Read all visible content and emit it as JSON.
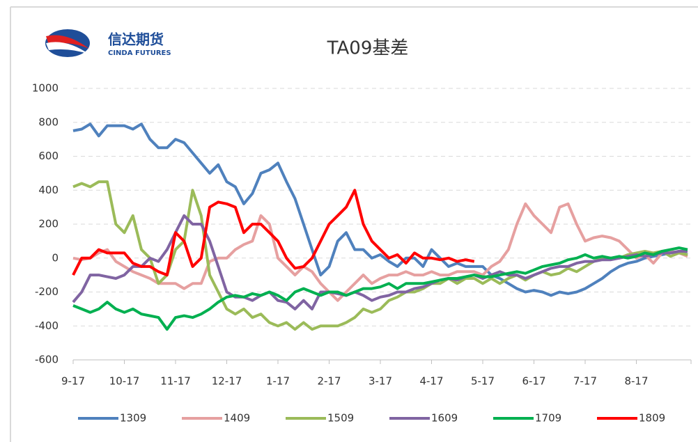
{
  "logo": {
    "name": "信达期货",
    "name_en": "CINDA FUTURES"
  },
  "chart_data": {
    "type": "line",
    "title": "TA09基差",
    "categories": [
      "9-17",
      null,
      null,
      null,
      null,
      null,
      "10-17",
      null,
      null,
      null,
      null,
      null,
      "11-17",
      null,
      null,
      null,
      null,
      null,
      "12-17",
      null,
      null,
      null,
      null,
      null,
      "1-17",
      null,
      null,
      null,
      null,
      null,
      "2-17",
      null,
      null,
      null,
      null,
      null,
      "3-17",
      null,
      null,
      null,
      null,
      null,
      "4-17",
      null,
      null,
      null,
      null,
      null,
      "5-17",
      null,
      null,
      null,
      null,
      null,
      "6-17",
      null,
      null,
      null,
      null,
      null,
      "7-17",
      null,
      null,
      null,
      null,
      null,
      "8-17",
      null,
      null,
      null,
      null,
      null,
      null
    ],
    "ylim": [
      -600,
      1000
    ],
    "yticks": [
      -600,
      -400,
      -200,
      0,
      200,
      400,
      600,
      800,
      1000
    ],
    "grid": true,
    "legend": "bottom",
    "series": [
      {
        "name": "1309",
        "color": "#4f81bd",
        "values": [
          750,
          760,
          790,
          720,
          780,
          780,
          780,
          760,
          790,
          700,
          650,
          650,
          700,
          680,
          620,
          560,
          500,
          550,
          450,
          420,
          320,
          380,
          500,
          520,
          560,
          450,
          350,
          200,
          50,
          -100,
          -50,
          100,
          150,
          50,
          50,
          0,
          20,
          -20,
          -50,
          0,
          0,
          -50,
          50,
          0,
          -50,
          -30,
          -50,
          -50,
          -50,
          -100,
          -120,
          -150,
          -180,
          -200,
          -190,
          -200,
          -220,
          -200,
          -210,
          -200,
          -180,
          -150,
          -120,
          -80,
          -50,
          -30,
          -20,
          0,
          10,
          20,
          30,
          40,
          20
        ]
      },
      {
        "name": "1409",
        "color": "#e6a0a0",
        "values": [
          0,
          -10,
          0,
          30,
          50,
          -20,
          -50,
          -80,
          -100,
          -120,
          -150,
          -150,
          -150,
          -180,
          -150,
          -150,
          -20,
          0,
          0,
          50,
          80,
          100,
          250,
          200,
          0,
          -50,
          -100,
          -50,
          -80,
          -150,
          -200,
          -250,
          -200,
          -150,
          -100,
          -150,
          -120,
          -100,
          -100,
          -80,
          -100,
          -100,
          -80,
          -100,
          -100,
          -80,
          -80,
          -80,
          -100,
          -50,
          -20,
          50,
          200,
          320,
          250,
          200,
          150,
          300,
          320,
          200,
          100,
          120,
          130,
          120,
          100,
          50,
          0,
          20,
          -30,
          30,
          40,
          30,
          10
        ]
      },
      {
        "name": "1509",
        "color": "#9bbb59",
        "values": [
          420,
          440,
          420,
          450,
          450,
          200,
          150,
          250,
          50,
          0,
          -150,
          -100,
          50,
          100,
          400,
          250,
          -100,
          -200,
          -300,
          -330,
          -300,
          -350,
          -330,
          -380,
          -400,
          -380,
          -420,
          -380,
          -420,
          -400,
          -400,
          -400,
          -380,
          -350,
          -300,
          -320,
          -300,
          -250,
          -230,
          -200,
          -200,
          -180,
          -150,
          -150,
          -120,
          -150,
          -120,
          -120,
          -150,
          -120,
          -150,
          -120,
          -100,
          -130,
          -100,
          -80,
          -100,
          -90,
          -60,
          -80,
          -50,
          -20,
          0,
          0,
          0,
          20,
          30,
          40,
          30,
          40,
          10,
          30,
          20
        ]
      },
      {
        "name": "1609",
        "color": "#8064a2",
        "values": [
          -260,
          -200,
          -100,
          -100,
          -110,
          -120,
          -100,
          -50,
          -50,
          0,
          -20,
          50,
          150,
          250,
          200,
          200,
          100,
          -50,
          -200,
          -230,
          -230,
          -250,
          -220,
          -200,
          -250,
          -260,
          -300,
          -250,
          -300,
          -200,
          -200,
          -210,
          -220,
          -200,
          -220,
          -250,
          -230,
          -220,
          -200,
          -200,
          -180,
          -170,
          -150,
          -130,
          -120,
          -130,
          -110,
          -100,
          -120,
          -100,
          -80,
          -100,
          -100,
          -120,
          -100,
          -80,
          -60,
          -50,
          -50,
          -30,
          -20,
          -20,
          -10,
          -10,
          0,
          10,
          20,
          10,
          20,
          30,
          30,
          40,
          40
        ]
      },
      {
        "name": "1709",
        "color": "#00b050",
        "values": [
          -280,
          -300,
          -320,
          -300,
          -260,
          -300,
          -320,
          -300,
          -330,
          -340,
          -350,
          -420,
          -350,
          -340,
          -350,
          -330,
          -300,
          -260,
          -230,
          -220,
          -230,
          -210,
          -220,
          -200,
          -220,
          -250,
          -200,
          -180,
          -200,
          -220,
          -200,
          -200,
          -220,
          -200,
          -180,
          -180,
          -170,
          -150,
          -180,
          -150,
          -150,
          -150,
          -140,
          -130,
          -120,
          -120,
          -110,
          -100,
          -110,
          -110,
          -100,
          -90,
          -80,
          -90,
          -70,
          -50,
          -40,
          -30,
          -10,
          0,
          20,
          0,
          10,
          0,
          10,
          0,
          10,
          30,
          20,
          40,
          50,
          60,
          50
        ]
      },
      {
        "name": "1809",
        "color": "#ff0000",
        "values": [
          -100,
          0,
          0,
          50,
          30,
          30,
          30,
          -30,
          -50,
          -50,
          -80,
          -100,
          150,
          100,
          -50,
          0,
          300,
          330,
          320,
          300,
          150,
          200,
          200,
          150,
          100,
          0,
          -60,
          -50,
          0,
          100,
          200,
          250,
          300,
          400,
          200,
          100,
          50,
          0,
          20,
          -30,
          30,
          0,
          0,
          -10,
          0,
          -20,
          -10,
          -20,
          null,
          null,
          null,
          null,
          null,
          null,
          null,
          null,
          null,
          null,
          null,
          null,
          null,
          null,
          null,
          null,
          null,
          null,
          null,
          null,
          null,
          null,
          null,
          null,
          null
        ]
      }
    ]
  }
}
